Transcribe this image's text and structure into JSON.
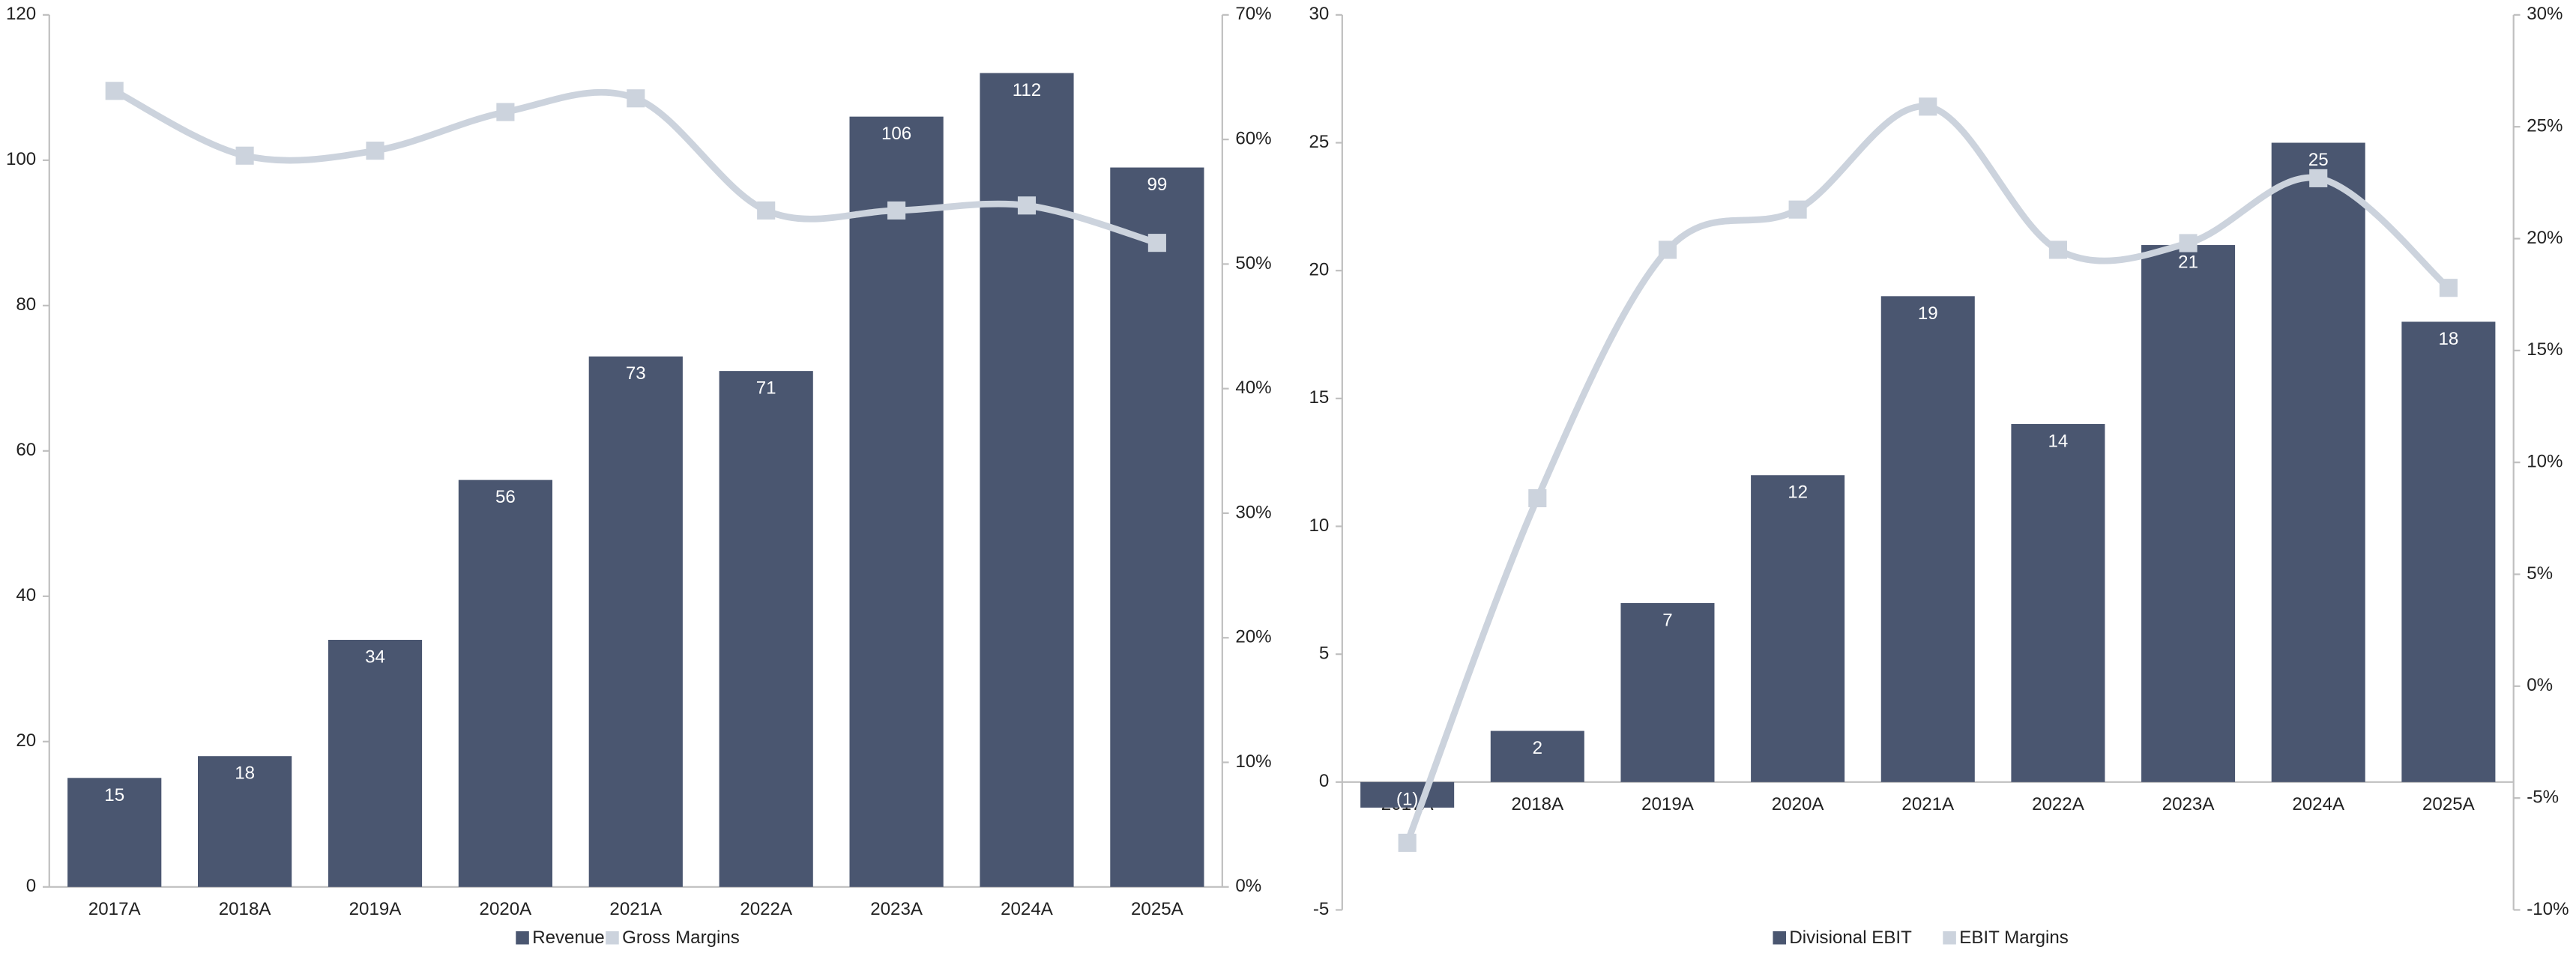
{
  "chart_data": [
    {
      "type": "bar",
      "categories": [
        "2017A",
        "2018A",
        "2019A",
        "2020A",
        "2021A",
        "2022A",
        "2023A",
        "2024A",
        "2025A"
      ],
      "series": [
        {
          "name": "Revenue",
          "type": "bar",
          "color": "#4a5670",
          "values": [
            15,
            18,
            34,
            56,
            73,
            71,
            106,
            112,
            99
          ]
        },
        {
          "name": "Gross Margins",
          "type": "line",
          "axis": "y2",
          "color": "#ccd3dd",
          "values": [
            63.9,
            58.7,
            59.1,
            62.2,
            63.3,
            54.3,
            54.3,
            54.7,
            51.7
          ]
        }
      ],
      "ylim": [
        0,
        120
      ],
      "yticks": [
        0,
        20,
        40,
        60,
        80,
        100,
        120
      ],
      "y2lim": [
        0,
        70
      ],
      "y2ticks": [
        {
          "value": 0,
          "label": "0%"
        },
        {
          "value": 10,
          "label": "10%"
        },
        {
          "value": 20,
          "label": "20%"
        },
        {
          "value": 30,
          "label": "30%"
        },
        {
          "value": 40,
          "label": "40%"
        },
        {
          "value": 50,
          "label": "50%"
        },
        {
          "value": 60,
          "label": "60%"
        },
        {
          "value": 70,
          "label": "70%"
        }
      ],
      "legend": "bottom"
    },
    {
      "type": "bar",
      "categories": [
        "2017A",
        "2018A",
        "2019A",
        "2020A",
        "2021A",
        "2022A",
        "2023A",
        "2024A",
        "2025A"
      ],
      "series": [
        {
          "name": "Divisional EBIT",
          "type": "bar",
          "color": "#4a5670",
          "values": [
            -1,
            2,
            7,
            12,
            19,
            14,
            21,
            25,
            18
          ],
          "value_labels": [
            "(1)",
            "2",
            "7",
            "12",
            "19",
            "14",
            "21",
            "25",
            "18"
          ]
        },
        {
          "name": "EBIT Margins",
          "type": "line",
          "axis": "y2",
          "color": "#ccd3dd",
          "values": [
            -7.0,
            8.4,
            19.5,
            21.3,
            25.9,
            19.5,
            19.8,
            22.7,
            17.8
          ]
        }
      ],
      "ylim": [
        -5,
        30
      ],
      "yticks": [
        -5,
        0,
        5,
        10,
        15,
        20,
        25,
        30
      ],
      "y2lim": [
        -10,
        30
      ],
      "y2ticks": [
        {
          "value": -10,
          "label": "-10%"
        },
        {
          "value": -5,
          "label": "-5%"
        },
        {
          "value": 0,
          "label": "0%"
        },
        {
          "value": 5,
          "label": "5%"
        },
        {
          "value": 10,
          "label": "10%"
        },
        {
          "value": 15,
          "label": "15%"
        },
        {
          "value": 20,
          "label": "20%"
        },
        {
          "value": 25,
          "label": "25%"
        },
        {
          "value": 30,
          "label": "30%"
        }
      ],
      "legend": "bottom"
    }
  ]
}
